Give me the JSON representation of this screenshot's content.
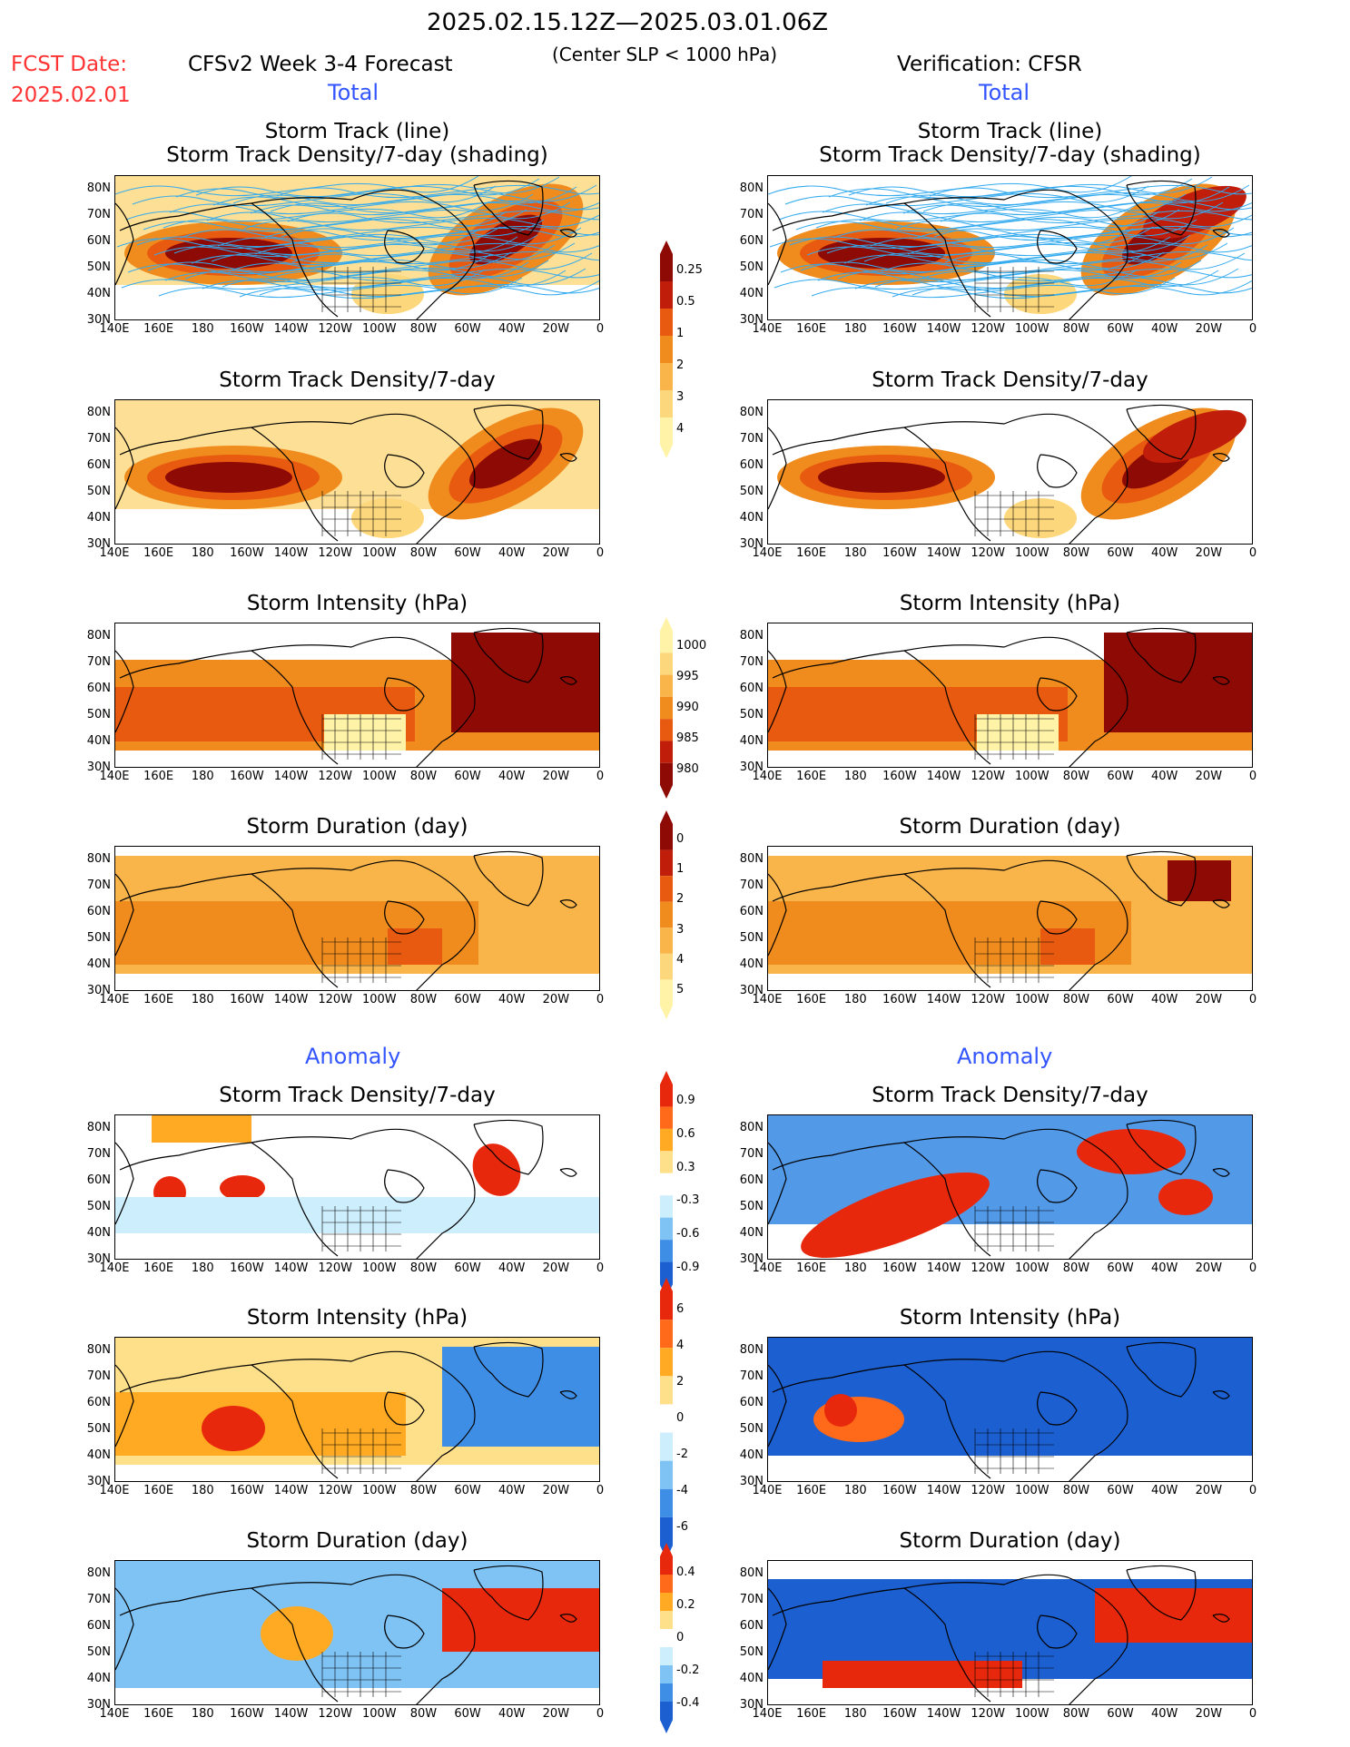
{
  "header": {
    "date_range": "2025.02.15.12Z—2025.03.01.06Z",
    "fcst_label": "FCST Date:",
    "fcst_date": "2025.02.01",
    "forecast_title": "CFSv2 Week 3-4 Forecast",
    "criterion": "(Center SLP < 1000 hPa)",
    "verification": "Verification: CFSR",
    "total_left": "Total",
    "total_right": "Total",
    "anomaly_left": "Anomaly",
    "anomaly_right": "Anomaly"
  },
  "panel_titles": {
    "track_line": "Storm Track (line)",
    "track_shading": "Storm Track Density/7-day (shading)",
    "density": "Storm Track Density/7-day",
    "intensity": "Storm Intensity (hPa)",
    "duration": "Storm Duration (day)"
  },
  "lat_labels": [
    "80N",
    "70N",
    "60N",
    "50N",
    "40N",
    "30N"
  ],
  "lon_labels": [
    "140E",
    "160E",
    "180",
    "160W",
    "140W",
    "120W",
    "100W",
    "80W",
    "60W",
    "40W",
    "20W",
    "0"
  ],
  "colorbars": {
    "density_total": [
      "0.25",
      "0.5",
      "1",
      "2",
      "3",
      "4"
    ],
    "intensity_total": [
      "1000",
      "995",
      "990",
      "985",
      "980"
    ],
    "duration_total": [
      "0",
      "1",
      "2",
      "3",
      "4",
      "5"
    ],
    "density_anom": [
      "0.9",
      "0.6",
      "0.3",
      "-0.3",
      "-0.6",
      "-0.9"
    ],
    "intensity_anom": [
      "6",
      "4",
      "2",
      "0",
      "-2",
      "-4",
      "-6"
    ],
    "duration_anom": [
      "0.4",
      "0.2",
      "0",
      "-0.2",
      "-0.4"
    ]
  },
  "colors": {
    "total_scale": [
      "#fff3a8",
      "#fdd77b",
      "#f9b54a",
      "#f08c1e",
      "#e85a0f",
      "#c01e0a",
      "#8e0a04"
    ],
    "anom_warm": [
      "#ffe08a",
      "#ffaa22",
      "#ff6a1a",
      "#e8280c"
    ],
    "anom_cool": [
      "#cdeefc",
      "#7fc3f5",
      "#3f8ee6",
      "#1c5fd0"
    ],
    "track_line": "#33aaee",
    "title_red": "#ff3333",
    "title_blue": "#3355ff"
  }
}
